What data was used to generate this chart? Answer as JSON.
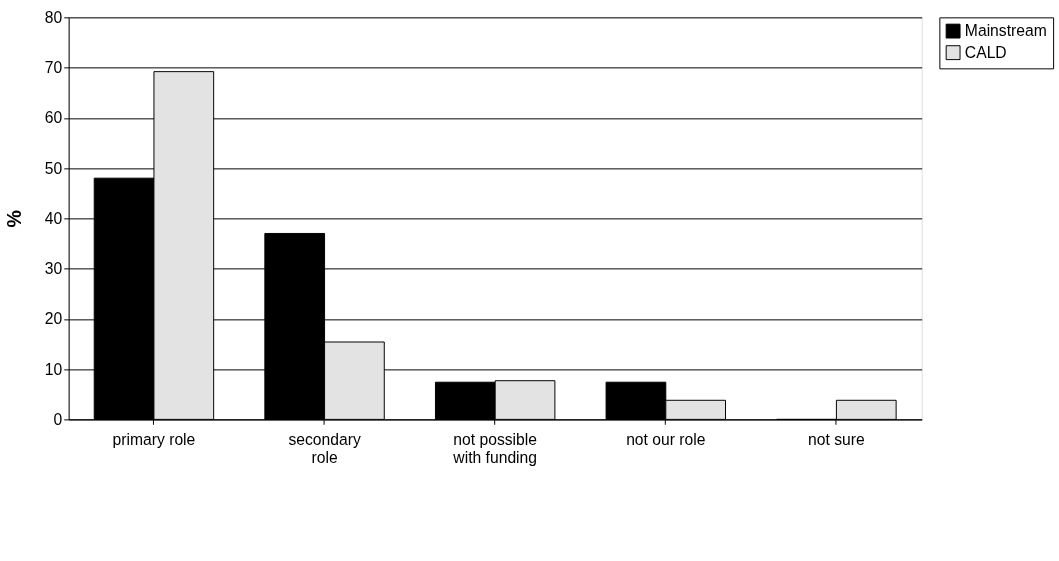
{
  "chart_data": {
    "type": "bar",
    "ylabel": "%",
    "categories": [
      "primary role",
      "secondary role",
      "not possible with funding",
      "not our role",
      "not sure"
    ],
    "series": [
      {
        "name": "Mainstream",
        "color": "#000000",
        "values": [
          48,
          37,
          7.4,
          7.4,
          0
        ]
      },
      {
        "name": "CALD",
        "color": "#e3e3e3",
        "values": [
          69.2,
          15.4,
          7.7,
          3.8,
          3.8
        ]
      }
    ],
    "ylim": [
      0,
      80
    ],
    "yticks": [
      0,
      10,
      20,
      30,
      40,
      50,
      60,
      70,
      80
    ],
    "grid": "y",
    "legend": "right"
  }
}
